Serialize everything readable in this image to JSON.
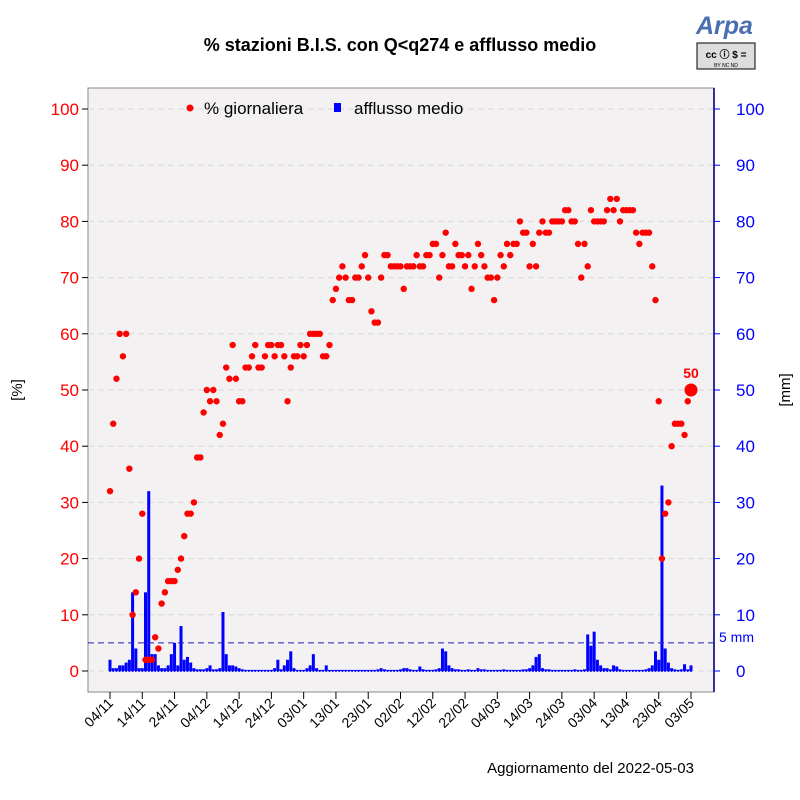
{
  "chart_data": {
    "type": "scatter+bar",
    "title": "% stazioni B.I.S. con Q<q274 e afflusso medio",
    "ylabel_left": "[%]",
    "ylabel_right": "[mm]",
    "ylim": [
      0,
      100
    ],
    "yticks": [
      0,
      10,
      20,
      30,
      40,
      50,
      60,
      70,
      80,
      90,
      100
    ],
    "grid": true,
    "legend_position": "top",
    "x_start": "2021-11-04",
    "x_end": "2022-05-03",
    "xtick_labels": [
      "04/11",
      "14/11",
      "24/11",
      "04/12",
      "14/12",
      "24/12",
      "03/01",
      "13/01",
      "23/01",
      "02/02",
      "12/02",
      "22/02",
      "04/03",
      "14/03",
      "24/03",
      "03/04",
      "13/04",
      "23/04",
      "03/05"
    ],
    "threshold": {
      "value": 5,
      "label": "5 mm"
    },
    "last_value_label": "50",
    "footer": "Aggiornamento del 2022-05-03",
    "series": [
      {
        "name": "% giornaliera",
        "type": "scatter",
        "color": "#ff0000",
        "values": [
          32,
          44,
          52,
          60,
          56,
          60,
          36,
          10,
          14,
          20,
          28,
          2,
          2,
          2,
          6,
          4,
          12,
          14,
          16,
          16,
          16,
          18,
          20,
          24,
          28,
          28,
          30,
          38,
          38,
          46,
          50,
          48,
          50,
          48,
          42,
          44,
          54,
          52,
          58,
          52,
          48,
          48,
          54,
          54,
          56,
          58,
          54,
          54,
          56,
          58,
          58,
          56,
          58,
          58,
          56,
          48,
          54,
          56,
          56,
          58,
          56,
          58,
          60,
          60,
          60,
          60,
          56,
          56,
          58,
          66,
          68,
          70,
          72,
          70,
          66,
          66,
          70,
          70,
          72,
          74,
          70,
          64,
          62,
          62,
          70,
          74,
          74,
          72,
          72,
          72,
          72,
          68,
          72,
          72,
          72,
          74,
          72,
          72,
          74,
          74,
          76,
          76,
          70,
          74,
          78,
          72,
          72,
          76,
          74,
          74,
          72,
          74,
          68,
          72,
          76,
          74,
          72,
          70,
          70,
          66,
          70,
          74,
          72,
          76,
          74,
          76,
          76,
          80,
          78,
          78,
          72,
          76,
          72,
          78,
          80,
          78,
          78,
          80,
          80,
          80,
          80,
          82,
          82,
          80,
          80,
          76,
          70,
          76,
          72,
          82,
          80,
          80,
          80,
          80,
          82,
          84,
          82,
          84,
          80,
          82,
          82,
          82,
          82,
          78,
          76,
          78,
          78,
          78,
          72,
          66,
          48,
          20,
          28,
          30,
          40,
          44,
          44,
          44,
          42,
          48,
          50
        ]
      },
      {
        "name": "afflusso medio",
        "type": "bar",
        "color": "#0000ff",
        "values": [
          2,
          0.5,
          0.5,
          1,
          1,
          1.5,
          2,
          14,
          4,
          0.5,
          0.5,
          14,
          32,
          3,
          3,
          1,
          0.5,
          0.5,
          1,
          3,
          5,
          1,
          8,
          2,
          2.5,
          1.5,
          0.5,
          0.3,
          0.3,
          0.3,
          0.5,
          1,
          0.3,
          0.3,
          0.5,
          10.5,
          3,
          1,
          1,
          0.8,
          0.5,
          0.3,
          0.2,
          0.2,
          0.2,
          0.2,
          0.2,
          0.2,
          0.2,
          0.2,
          0.2,
          0.5,
          2,
          0.3,
          1,
          2,
          3.5,
          0.5,
          0.2,
          0.2,
          0.2,
          0.5,
          1,
          3,
          0.5,
          0.2,
          0.2,
          1,
          0.2,
          0.2,
          0.2,
          0.2,
          0.2,
          0.2,
          0.2,
          0.2,
          0.2,
          0.2,
          0.2,
          0.2,
          0.2,
          0.2,
          0.2,
          0.3,
          0.5,
          0.3,
          0.2,
          0.2,
          0.2,
          0.2,
          0.3,
          0.5,
          0.5,
          0.3,
          0.2,
          0.2,
          0.8,
          0.3,
          0.2,
          0.2,
          0.2,
          0.3,
          0.5,
          4,
          3.5,
          1,
          0.5,
          0.3,
          0.3,
          0.2,
          0.2,
          0.3,
          0.2,
          0.2,
          0.5,
          0.3,
          0.3,
          0.2,
          0.2,
          0.2,
          0.2,
          0.2,
          0.3,
          0.2,
          0.2,
          0.2,
          0.2,
          0.2,
          0.3,
          0.3,
          0.5,
          1,
          2.5,
          3,
          0.5,
          0.3,
          0.3,
          0.2,
          0.2,
          0.2,
          0.2,
          0.2,
          0.2,
          0.2,
          0.3,
          0.2,
          0.2,
          0.3,
          6.5,
          4.5,
          7,
          2,
          1,
          0.5,
          0.5,
          0.3,
          1,
          0.8,
          0.3,
          0.2,
          0.2,
          0.2,
          0.2,
          0.2,
          0.2,
          0.2,
          0.3,
          0.5,
          1,
          3.5,
          2,
          33,
          4,
          1.5,
          0.5,
          0.3,
          0.2,
          0.3,
          1.2,
          0.3,
          1
        ]
      }
    ]
  },
  "logo": {
    "brand": "Arpa",
    "license": "cc BY NC ND"
  }
}
